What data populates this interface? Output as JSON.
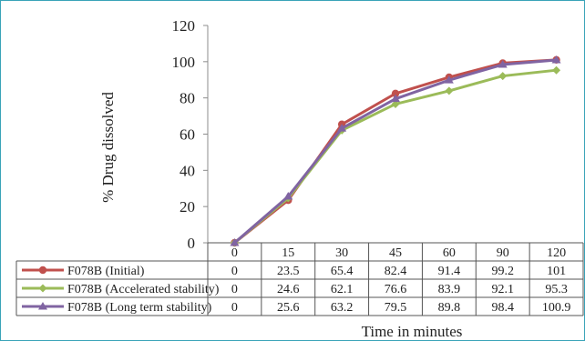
{
  "chart_data": {
    "type": "line",
    "title": "",
    "xlabel": "Time  in minutes",
    "ylabel": "% Drug dissolved",
    "ylim": [
      0,
      120
    ],
    "yticks": [
      "0",
      "20",
      "40",
      "60",
      "80",
      "100",
      "120"
    ],
    "categories": [
      "0",
      "15",
      "30",
      "45",
      "60",
      "90",
      "120"
    ],
    "series": [
      {
        "name": "F078B (Initial)",
        "color": "#c0504d",
        "marker": "circle",
        "values": [
          0,
          23.5,
          65.4,
          82.4,
          91.4,
          99.2,
          101
        ],
        "labels": [
          "0",
          "23.5",
          "65.4",
          "82.4",
          "91.4",
          "99.2",
          "101"
        ]
      },
      {
        "name": "F078B (Accelerated stability)",
        "color": "#9bbb59",
        "marker": "diamond",
        "values": [
          0,
          24.6,
          62.1,
          76.6,
          83.9,
          92.1,
          95.3
        ],
        "labels": [
          "0",
          "24.6",
          "62.1",
          "76.6",
          "83.9",
          "92.1",
          "95.3"
        ]
      },
      {
        "name": "F078B (Long term stability)",
        "color": "#8064a2",
        "marker": "triangle",
        "values": [
          0,
          25.6,
          63.2,
          79.5,
          89.8,
          98.4,
          100.9
        ],
        "labels": [
          "0",
          "25.6",
          "63.2",
          "79.5",
          "89.8",
          "98.4",
          "100.9"
        ]
      }
    ],
    "grid": false,
    "legend": "data-table-left"
  }
}
